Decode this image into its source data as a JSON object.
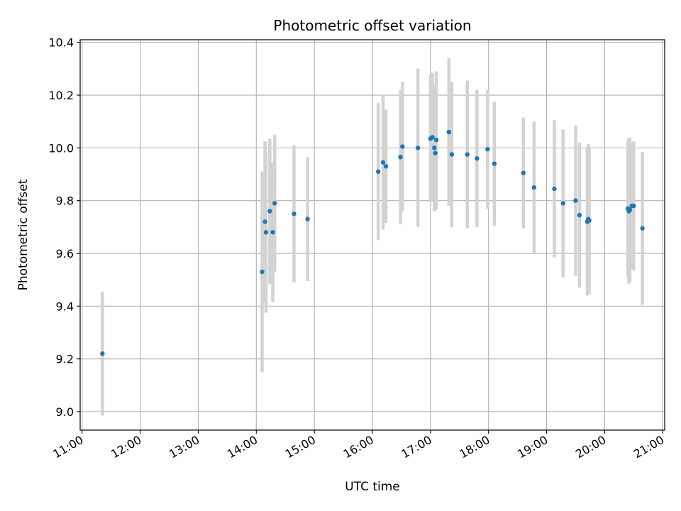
{
  "chart_data": {
    "type": "scatter",
    "title": "Photometric offset variation",
    "xlabel": "UTC time",
    "ylabel": "Photometric offset",
    "x_ticks": [
      "11:00",
      "12:00",
      "13:00",
      "14:00",
      "15:00",
      "16:00",
      "17:00",
      "18:00",
      "19:00",
      "20:00",
      "21:00"
    ],
    "y_ticks": [
      "9.0",
      "9.2",
      "9.4",
      "9.6",
      "9.8",
      "10.0",
      "10.2",
      "10.4"
    ],
    "xlim": [
      "10:58",
      "21:02"
    ],
    "ylim": [
      8.93,
      10.41
    ],
    "grid": true,
    "colors": {
      "point": "#1f77b4",
      "errorbar": "#d3d3d3",
      "grid": "#b0b0b0"
    },
    "series": [
      {
        "x": [
          "11:21",
          "14:06",
          "14:09",
          "14:10",
          "14:14",
          "14:17",
          "14:19",
          "14:39",
          "14:53",
          "16:06",
          "16:11",
          "16:14",
          "16:29",
          "16:31",
          "16:47",
          "17:00",
          "17:02",
          "17:04",
          "17:05",
          "17:06",
          "17:19",
          "17:22",
          "17:38",
          "17:48",
          "17:59",
          "18:06",
          "18:36",
          "18:47",
          "19:08",
          "19:17",
          "19:30",
          "19:34",
          "19:42",
          "19:43",
          "19:44",
          "20:24",
          "20:25",
          "20:26",
          "20:28",
          "20:30",
          "20:39"
        ],
        "y": [
          9.22,
          9.53,
          9.72,
          9.68,
          9.76,
          9.68,
          9.79,
          9.75,
          9.73,
          9.91,
          9.945,
          9.93,
          9.965,
          10.005,
          10.0,
          10.035,
          10.04,
          10.0,
          9.98,
          10.03,
          10.06,
          9.975,
          9.975,
          9.96,
          9.995,
          9.94,
          9.905,
          9.85,
          9.845,
          9.79,
          9.8,
          9.745,
          9.72,
          9.73,
          9.725,
          9.77,
          9.76,
          9.765,
          9.78,
          9.78,
          9.695
        ],
        "yerr": [
          0.235,
          0.38,
          0.305,
          0.305,
          0.275,
          0.265,
          0.26,
          0.26,
          0.235,
          0.26,
          0.255,
          0.215,
          0.255,
          0.245,
          0.3,
          0.24,
          0.245,
          0.24,
          0.215,
          0.26,
          0.28,
          0.275,
          0.28,
          0.26,
          0.225,
          0.235,
          0.21,
          0.25,
          0.26,
          0.28,
          0.285,
          0.275,
          0.28,
          0.285,
          0.28,
          0.26,
          0.275,
          0.275,
          0.24,
          0.245,
          0.29
        ]
      }
    ]
  }
}
